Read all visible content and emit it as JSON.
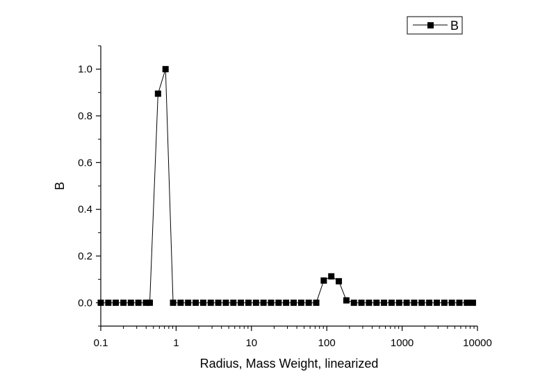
{
  "chart_data": {
    "type": "line",
    "title": "",
    "xlabel": "Radius, Mass Weight, linearized",
    "ylabel": "B",
    "x_scale": "log",
    "xlim": [
      0.1,
      10000
    ],
    "ylim": [
      -0.1,
      1.1
    ],
    "x_ticks": [
      0.1,
      1,
      10,
      100,
      1000,
      10000
    ],
    "x_tick_labels": [
      "0.1",
      "1",
      "10",
      "100",
      "1000",
      "10000"
    ],
    "y_ticks": [
      0.0,
      0.2,
      0.4,
      0.6,
      0.8,
      1.0
    ],
    "y_tick_labels": [
      "0.0",
      "0.2",
      "0.4",
      "0.6",
      "0.8",
      "1.0"
    ],
    "grid": false,
    "legend_position": "top-right",
    "marker": "square",
    "color": "#000000",
    "series": [
      {
        "name": "B",
        "x": [
          0.1,
          0.126,
          0.158,
          0.2,
          0.251,
          0.316,
          0.398,
          0.447,
          0.575,
          0.724,
          0.912,
          1.148,
          1.445,
          1.82,
          2.291,
          2.884,
          3.631,
          4.571,
          5.754,
          7.244,
          9.12,
          11.48,
          14.45,
          18.2,
          22.91,
          28.84,
          36.31,
          45.71,
          57.54,
          72.44,
          91.2,
          114.8,
          144.5,
          182.0,
          229.1,
          288.4,
          363.1,
          457.1,
          575.4,
          724.4,
          912.0,
          1148,
          1445,
          1820,
          2291,
          2884,
          3631,
          4571,
          5754,
          7244,
          8700
        ],
        "y": [
          0,
          0,
          0,
          0,
          0,
          0,
          0,
          0,
          0.895,
          1.0,
          0,
          0,
          0,
          0,
          0,
          0,
          0,
          0,
          0,
          0,
          0,
          0,
          0,
          0,
          0,
          0,
          0,
          0,
          0,
          0,
          0.095,
          0.113,
          0.092,
          0.01,
          0,
          0,
          0,
          0,
          0,
          0,
          0,
          0,
          0,
          0,
          0,
          0,
          0,
          0,
          0,
          0,
          0
        ]
      }
    ]
  }
}
